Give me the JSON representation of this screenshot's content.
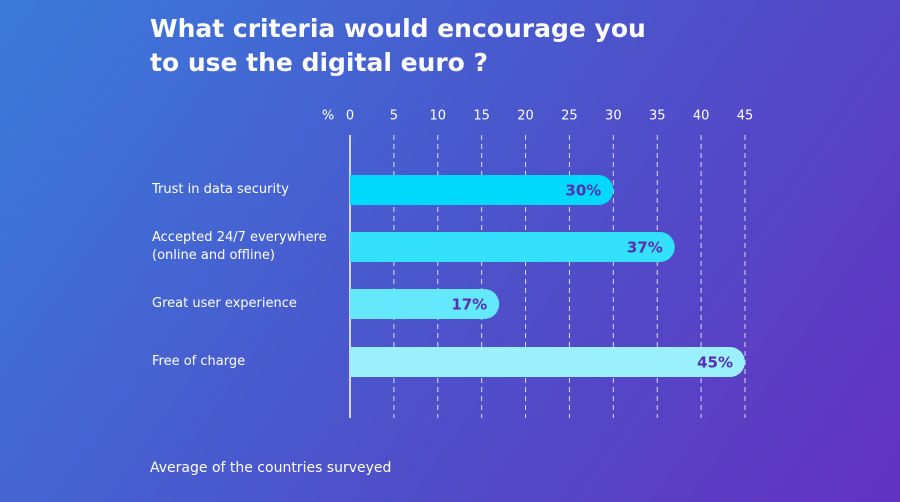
{
  "chart_data": {
    "type": "hbar",
    "title": "What criteria would encourage you to use the digital euro ?",
    "x_label": "%",
    "footnote": "Average of the countries surveyed",
    "categories": [
      "Trust in data security",
      "Accepted 24/7 everywhere (online and offline)",
      "Great user experience",
      "Free of charge"
    ],
    "values": [
      30,
      37,
      17,
      45
    ],
    "value_labels": [
      "30%",
      "37%",
      "17%",
      "45%"
    ],
    "colors": [
      "#00d9fb",
      "#33e1fd",
      "#63e8fd",
      "#9af0fd"
    ],
    "label_color": "#5a2db0",
    "xlim": [
      0,
      45
    ],
    "xticks": [
      0,
      5,
      10,
      15,
      20,
      25,
      30,
      35,
      40,
      45
    ],
    "grid": true
  }
}
